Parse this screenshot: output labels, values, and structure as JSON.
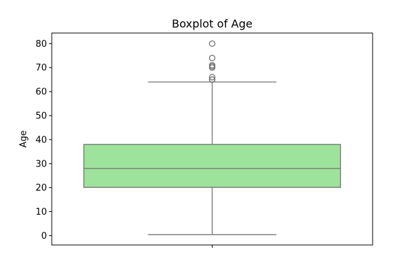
{
  "chart_data": {
    "type": "box",
    "title": "Boxplot of Age",
    "xlabel": "",
    "ylabel": "Age",
    "ylim": [
      -3.9,
      84.4
    ],
    "yticks": [
      0,
      10,
      20,
      30,
      40,
      50,
      60,
      70,
      80
    ],
    "ytick_labels": [
      "0",
      "10",
      "20",
      "30",
      "40",
      "50",
      "60",
      "70",
      "80"
    ],
    "grid": false,
    "legend": "none",
    "box_color": "#9de39b",
    "line_color": "#737373",
    "boxes": [
      {
        "whisker_low": 0.42,
        "q1": 20.1,
        "median": 28.0,
        "q3": 38.0,
        "whisker_high": 64.0,
        "outliers": [
          65.0,
          65.0,
          66.0,
          70.0,
          70.5,
          71.0,
          74.0,
          80.0
        ]
      }
    ]
  }
}
